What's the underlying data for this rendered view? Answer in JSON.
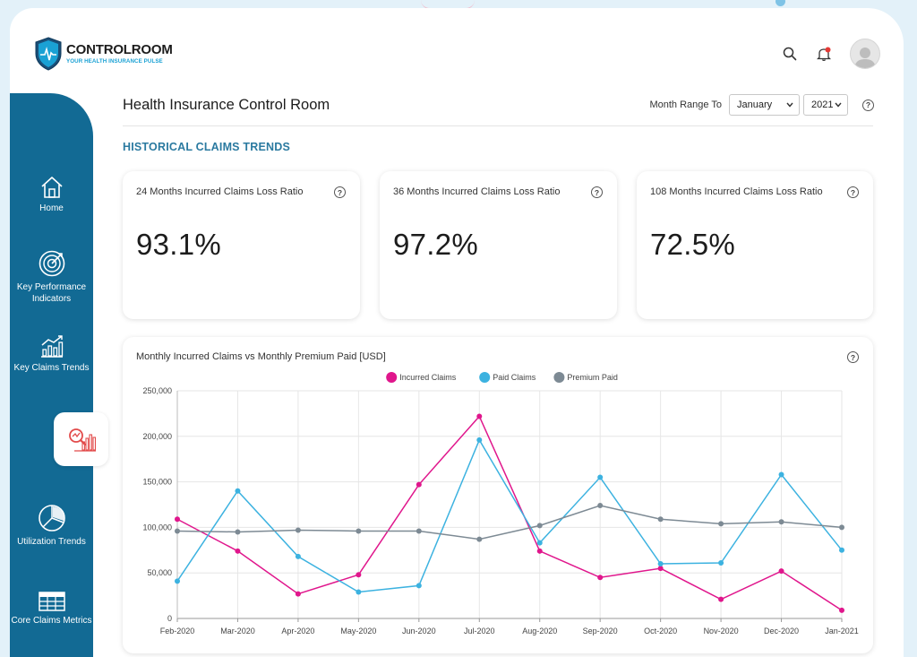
{
  "app": {
    "brand": "CONTROLROOM",
    "tagline": "YOUR HEALTH INSURANCE PULSE"
  },
  "sidebar": {
    "items": [
      {
        "label": "Home",
        "icon": "home-icon"
      },
      {
        "label": "Key Performance Indicators",
        "icon": "target-icon"
      },
      {
        "label": "Key Claims Trends",
        "icon": "trend-chart-icon"
      },
      {
        "label": "",
        "icon": "claims-search-icon",
        "active": true
      },
      {
        "label": "Utilization Trends",
        "icon": "pie-chart-icon"
      },
      {
        "label": "Core Claims Metrics",
        "icon": "table-icon"
      }
    ]
  },
  "header": {
    "title": "Health Insurance Control Room",
    "range_label": "Month Range To",
    "month": "January",
    "year": "2021"
  },
  "section": {
    "title": "HISTORICAL CLAIMS TRENDS"
  },
  "kpis": [
    {
      "title": "24 Months Incurred Claims Loss Ratio",
      "value": "93.1%"
    },
    {
      "title": "36 Months Incurred Claims Loss Ratio",
      "value": "97.2%"
    },
    {
      "title": "108 Months Incurred Claims Loss Ratio",
      "value": "72.5%"
    }
  ],
  "colors": {
    "sidebar": "#126a94",
    "incurred": "#e0168c",
    "paid": "#3cb2e0",
    "premium": "#7d8a94"
  },
  "chart_data": {
    "type": "line",
    "title": "Monthly Incurred Claims vs Monthly Premium Paid [USD]",
    "x": [
      "Feb-2020",
      "Mar-2020",
      "Apr-2020",
      "May-2020",
      "Jun-2020",
      "Jul-2020",
      "Aug-2020",
      "Sep-2020",
      "Oct-2020",
      "Nov-2020",
      "Dec-2020",
      "Jan-2021"
    ],
    "ylim": [
      0,
      250000
    ],
    "yticks": [
      0,
      50000,
      100000,
      150000,
      200000,
      250000
    ],
    "ytick_labels": [
      "0",
      "50,000",
      "100,000",
      "150,000",
      "200,000",
      "250,000"
    ],
    "grid": true,
    "legend_position": "top-center",
    "series": [
      {
        "name": "Incurred Claims",
        "color": "#e0168c",
        "values": [
          109000,
          74000,
          27000,
          48000,
          147000,
          222000,
          74000,
          45000,
          55000,
          21000,
          52000,
          9000
        ]
      },
      {
        "name": "Paid Claims",
        "color": "#3cb2e0",
        "values": [
          41000,
          140000,
          68000,
          29000,
          36000,
          196000,
          83000,
          155000,
          60000,
          61000,
          158000,
          75000
        ]
      },
      {
        "name": "Premium Paid",
        "color": "#7d8a94",
        "values": [
          96000,
          95000,
          97000,
          96000,
          96000,
          87000,
          102000,
          124000,
          109000,
          104000,
          106000,
          100000
        ]
      }
    ]
  }
}
